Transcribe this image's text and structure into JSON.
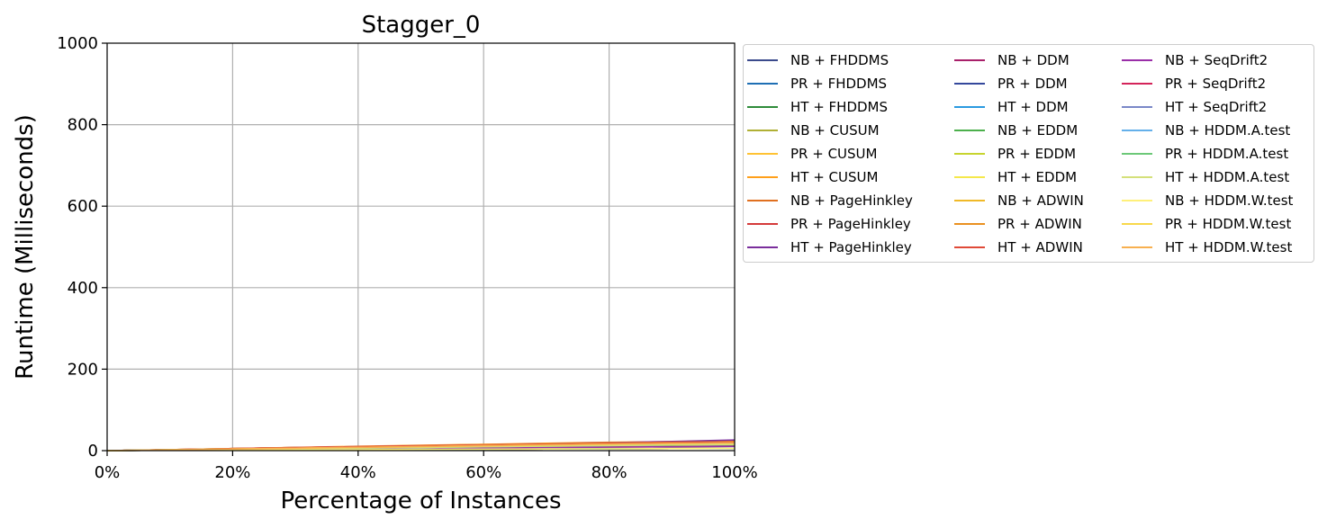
{
  "chart_data": {
    "type": "line",
    "title": "Stagger_0",
    "xlabel": "Percentage of Instances",
    "ylabel": "Runtime (Milliseconds)",
    "xlim": [
      0,
      100
    ],
    "ylim": [
      0,
      1000
    ],
    "xticks": [
      0,
      20,
      40,
      60,
      80,
      100
    ],
    "xtick_labels": [
      "0%",
      "20%",
      "40%",
      "60%",
      "80%",
      "100%"
    ],
    "yticks": [
      0,
      200,
      400,
      600,
      800,
      1000
    ],
    "ytick_labels": [
      "0",
      "200",
      "400",
      "600",
      "800",
      "1000"
    ],
    "grid": true,
    "legend_position": "outside right, top",
    "legend_columns": 3,
    "x": [
      0,
      10,
      20,
      30,
      40,
      50,
      60,
      70,
      80,
      90,
      100
    ],
    "series": [
      {
        "name": "NB + FHDDMS",
        "color": "#3b4a8c",
        "values": [
          0,
          1,
          1.5,
          2,
          2.5,
          3,
          3.5,
          4,
          4.5,
          5,
          5.5
        ]
      },
      {
        "name": "PR + FHDDMS",
        "color": "#1f6fb4",
        "values": [
          0,
          1.5,
          3,
          4.5,
          6,
          7,
          8,
          9,
          10,
          11,
          12
        ]
      },
      {
        "name": "HT + FHDDMS",
        "color": "#2e8b3a",
        "values": [
          0,
          1.5,
          3,
          4,
          5.5,
          6.5,
          7.5,
          8.5,
          9.5,
          10.5,
          11.5
        ]
      },
      {
        "name": "NB + CUSUM",
        "color": "#b0b035",
        "values": [
          0,
          1,
          1.5,
          2,
          2.5,
          3,
          3.5,
          4,
          4.5,
          5,
          5.5
        ]
      },
      {
        "name": "PR + CUSUM",
        "color": "#ffc233",
        "values": [
          0,
          2.5,
          5,
          7.5,
          10,
          12,
          14,
          16,
          18,
          19,
          20
        ]
      },
      {
        "name": "HT + CUSUM",
        "color": "#ff9f1a",
        "values": [
          0,
          2.5,
          5,
          8,
          10.5,
          13,
          15.5,
          18,
          20.5,
          22,
          23
        ]
      },
      {
        "name": "NB + PageHinkley",
        "color": "#e07020",
        "values": [
          0,
          1,
          1.5,
          2,
          2.5,
          3,
          3.5,
          4,
          4.5,
          5,
          5.5
        ]
      },
      {
        "name": "PR + PageHinkley",
        "color": "#d43a3a",
        "values": [
          0,
          2,
          4,
          6,
          8,
          9.5,
          11,
          12.5,
          14,
          15.5,
          17
        ]
      },
      {
        "name": "HT + PageHinkley",
        "color": "#7a2e9c",
        "values": [
          0,
          2.5,
          5,
          7.5,
          10,
          12,
          14.5,
          17,
          19.5,
          22.5,
          26
        ]
      },
      {
        "name": "NB + DDM",
        "color": "#a8206a",
        "values": [
          0,
          1,
          1.5,
          2,
          2.5,
          3,
          3.5,
          4,
          4.5,
          5,
          5.5
        ]
      },
      {
        "name": "PR + DDM",
        "color": "#34489c",
        "values": [
          0,
          2,
          4,
          6,
          7.5,
          9,
          10.5,
          12,
          13.5,
          15,
          16
        ]
      },
      {
        "name": "HT + DDM",
        "color": "#2a9ae0",
        "values": [
          0,
          2,
          4,
          5.5,
          7,
          8.5,
          10,
          11.5,
          13,
          14.5,
          15.5
        ]
      },
      {
        "name": "NB + EDDM",
        "color": "#4cb04c",
        "values": [
          0,
          1,
          1.5,
          2,
          2.5,
          3,
          3.5,
          4,
          4.5,
          5,
          5.5
        ]
      },
      {
        "name": "PR + EDDM",
        "color": "#c7d42e",
        "values": [
          0,
          2,
          4,
          6,
          8,
          9.5,
          11,
          12.5,
          14,
          15,
          16
        ]
      },
      {
        "name": "HT + EDDM",
        "color": "#f5e84a",
        "values": [
          0,
          2,
          4,
          6,
          8,
          9.5,
          11,
          12.5,
          14,
          15,
          16
        ]
      },
      {
        "name": "NB + ADWIN",
        "color": "#f0b928",
        "values": [
          0,
          1.5,
          2.5,
          3.5,
          4.5,
          5.5,
          6.5,
          7.5,
          8.5,
          9.5,
          10.5
        ]
      },
      {
        "name": "PR + ADWIN",
        "color": "#ea9020",
        "values": [
          0,
          2.5,
          5,
          7.5,
          10,
          12.5,
          15,
          17,
          19,
          21,
          22
        ]
      },
      {
        "name": "HT + ADWIN",
        "color": "#e04a38",
        "values": [
          0,
          2.5,
          5,
          7.5,
          10,
          12,
          14,
          16,
          18,
          20,
          21
        ]
      },
      {
        "name": "NB + SeqDrift2",
        "color": "#9a2ea8",
        "values": [
          0,
          1.5,
          2.5,
          3.5,
          4.5,
          5.5,
          6.5,
          7.5,
          8.5,
          9.5,
          10.5
        ]
      },
      {
        "name": "PR + SeqDrift2",
        "color": "#d4245a",
        "values": [
          0,
          2,
          3.5,
          5,
          6.5,
          8,
          9.5,
          11,
          12.5,
          14,
          15
        ]
      },
      {
        "name": "HT + SeqDrift2",
        "color": "#7a88c8",
        "values": [
          0,
          2,
          3.5,
          5,
          6.5,
          8,
          9.5,
          11,
          12.5,
          14,
          15
        ]
      },
      {
        "name": "NB + HDDM.A.test",
        "color": "#64b0ea",
        "values": [
          0,
          1,
          1.5,
          2,
          2.5,
          3,
          3.5,
          4,
          4.5,
          5,
          5.5
        ]
      },
      {
        "name": "PR + HDDM.A.test",
        "color": "#6cc878",
        "values": [
          0,
          2,
          3.5,
          5,
          6.5,
          8,
          9.5,
          11,
          12.5,
          14,
          15
        ]
      },
      {
        "name": "HT + HDDM.A.test",
        "color": "#d4e07a",
        "values": [
          0,
          2,
          3.5,
          5,
          6.5,
          8,
          9.5,
          11,
          12.5,
          14,
          15
        ]
      },
      {
        "name": "NB + HDDM.W.test",
        "color": "#fff07a",
        "values": [
          0,
          1,
          1.5,
          2,
          2.5,
          3,
          3.5,
          4,
          4.5,
          5,
          5.5
        ]
      },
      {
        "name": "PR + HDDM.W.test",
        "color": "#f8d84a",
        "values": [
          0,
          2,
          4,
          6,
          8,
          10,
          12,
          14,
          16,
          17.5,
          19
        ]
      },
      {
        "name": "HT + HDDM.W.test",
        "color": "#f8b050",
        "values": [
          0,
          2,
          4,
          6,
          8,
          10,
          12,
          14,
          16,
          17.5,
          19
        ]
      }
    ]
  }
}
